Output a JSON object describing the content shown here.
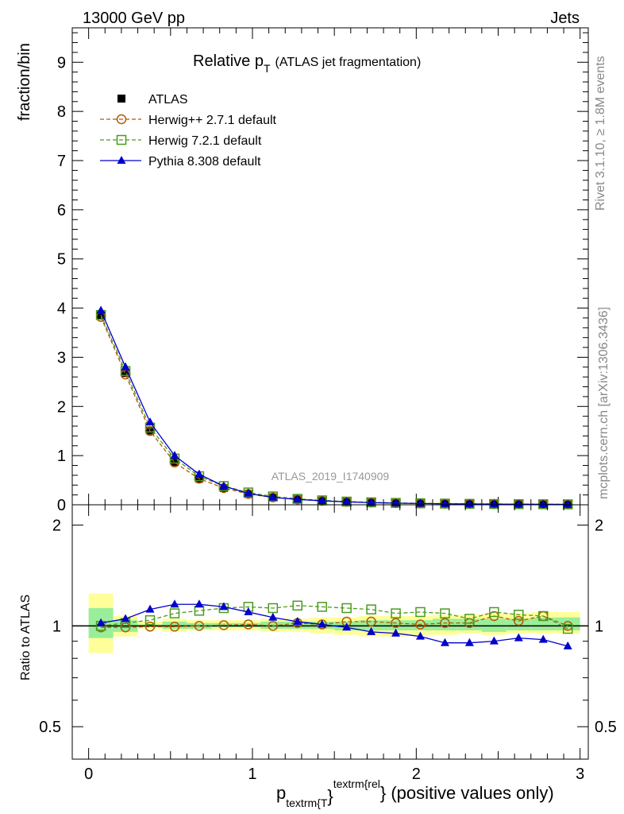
{
  "header": {
    "left": "13000 GeV pp",
    "right": "Jets"
  },
  "side": {
    "top": "Rivet 3.1.10, ≥ 1.8M events",
    "bottom": "mcplots.cern.ch [arXiv:1306.3436]"
  },
  "watermark": "ATLAS_2019_I1740909",
  "chart_data": [
    {
      "type": "line",
      "title": "Relative p",
      "title_sub": "T",
      "title_suffix": "(ATLAS jet fragmentation)",
      "ylabel": "fraction/bin",
      "xlim": [
        -0.1,
        3.05
      ],
      "ylim": [
        0,
        9.7
      ],
      "yticks": [
        "0",
        "1",
        "2",
        "3",
        "4",
        "5",
        "6",
        "7",
        "8",
        "9"
      ],
      "x": [
        0.075,
        0.225,
        0.375,
        0.525,
        0.675,
        0.825,
        0.975,
        1.125,
        1.275,
        1.425,
        1.575,
        1.725,
        1.875,
        2.025,
        2.175,
        2.325,
        2.475,
        2.625,
        2.775,
        2.925
      ],
      "series": [
        {
          "name": "ATLAS",
          "marker": "square-filled",
          "color": "#000000",
          "values": [
            3.85,
            2.68,
            1.51,
            0.87,
            0.53,
            0.34,
            0.22,
            0.15,
            0.11,
            0.08,
            0.06,
            0.045,
            0.035,
            0.028,
            0.022,
            0.018,
            0.015,
            0.012,
            0.01,
            0.008
          ]
        },
        {
          "name": "Herwig++ 2.7.1 default",
          "marker": "circle-open",
          "color": "#b35900",
          "dash": true,
          "values": [
            3.82,
            2.65,
            1.5,
            0.86,
            0.53,
            0.34,
            0.22,
            0.15,
            0.11,
            0.08,
            0.06,
            0.046,
            0.035,
            0.028,
            0.022,
            0.018,
            0.015,
            0.012,
            0.01,
            0.008
          ]
        },
        {
          "name": "Herwig 7.2.1 default",
          "marker": "square-open",
          "color": "#4c9a1f",
          "dash": true,
          "values": [
            3.86,
            2.72,
            1.57,
            0.94,
            0.58,
            0.38,
            0.25,
            0.17,
            0.12,
            0.09,
            0.065,
            0.05,
            0.038,
            0.031,
            0.024,
            0.019,
            0.016,
            0.013,
            0.011,
            0.009
          ]
        },
        {
          "name": "Pythia 8.308 default",
          "marker": "triangle-filled",
          "color": "#0000cc",
          "dash": false,
          "values": [
            3.95,
            2.8,
            1.68,
            1.0,
            0.62,
            0.38,
            0.23,
            0.15,
            0.11,
            0.08,
            0.06,
            0.043,
            0.033,
            0.026,
            0.02,
            0.016,
            0.013,
            0.011,
            0.009,
            0.007
          ]
        }
      ]
    },
    {
      "type": "line",
      "ylabel": "Ratio to ATLAS",
      "xlabel_main": "p",
      "xlabel_sub": "textrm{T",
      "xlabel_sup": "textrm{rel",
      "xlabel_brace": "}",
      "xlabel_suffix": "} (positive values only)",
      "xlim": [
        -0.1,
        3.05
      ],
      "ylim": [
        0.4,
        2.3
      ],
      "log_y": true,
      "xticks": [
        "0",
        "1",
        "2",
        "3"
      ],
      "yticks_left": [
        "0.5",
        "1",
        "2"
      ],
      "yticks_right": [
        "0.5",
        "1",
        "2"
      ],
      "x": [
        0.075,
        0.225,
        0.375,
        0.525,
        0.675,
        0.825,
        0.975,
        1.125,
        1.275,
        1.425,
        1.575,
        1.725,
        1.875,
        2.025,
        2.175,
        2.325,
        2.475,
        2.625,
        2.775,
        2.925
      ],
      "band_yellow": {
        "low": [
          0.83,
          0.93,
          0.98,
          0.96,
          0.97,
          0.97,
          0.97,
          0.96,
          0.96,
          0.95,
          0.94,
          0.93,
          0.93,
          0.94,
          0.94,
          0.95,
          0.94,
          0.95,
          0.95,
          0.95
        ],
        "high": [
          1.25,
          1.07,
          1.03,
          1.05,
          1.04,
          1.04,
          1.04,
          1.05,
          1.05,
          1.06,
          1.06,
          1.07,
          1.07,
          1.07,
          1.08,
          1.08,
          1.09,
          1.09,
          1.1,
          1.1
        ]
      },
      "band_green": {
        "low": [
          0.92,
          0.96,
          0.99,
          0.98,
          0.98,
          0.99,
          0.99,
          0.98,
          0.98,
          0.98,
          0.97,
          0.97,
          0.97,
          0.97,
          0.97,
          0.97,
          0.96,
          0.97,
          0.97,
          0.97
        ],
        "high": [
          1.13,
          1.04,
          1.01,
          1.03,
          1.02,
          1.02,
          1.02,
          1.03,
          1.03,
          1.03,
          1.03,
          1.04,
          1.04,
          1.04,
          1.05,
          1.05,
          1.05,
          1.05,
          1.06,
          1.06
        ]
      },
      "series": [
        {
          "name": "Herwig++ 2.7.1 default",
          "marker": "circle-open",
          "color": "#b35900",
          "dash": true,
          "values": [
            0.99,
            0.99,
            0.995,
            0.995,
            1.0,
            1.005,
            1.01,
            1.0,
            1.02,
            1.01,
            1.03,
            1.03,
            1.02,
            1.01,
            1.02,
            1.02,
            1.07,
            1.035,
            1.07,
            1.0
          ]
        },
        {
          "name": "Herwig 7.2.1 default",
          "marker": "square-open",
          "color": "#4c9a1f",
          "dash": true,
          "values": [
            1.0,
            1.02,
            1.04,
            1.09,
            1.11,
            1.13,
            1.14,
            1.13,
            1.15,
            1.14,
            1.13,
            1.12,
            1.09,
            1.1,
            1.09,
            1.05,
            1.1,
            1.08,
            1.07,
            0.98
          ]
        },
        {
          "name": "Pythia 8.308 default",
          "marker": "triangle-filled",
          "color": "#0000cc",
          "dash": false,
          "values": [
            1.02,
            1.05,
            1.12,
            1.16,
            1.16,
            1.14,
            1.1,
            1.06,
            1.03,
            1.01,
            0.99,
            0.96,
            0.95,
            0.93,
            0.89,
            0.89,
            0.9,
            0.92,
            0.91,
            0.87
          ]
        }
      ]
    }
  ]
}
